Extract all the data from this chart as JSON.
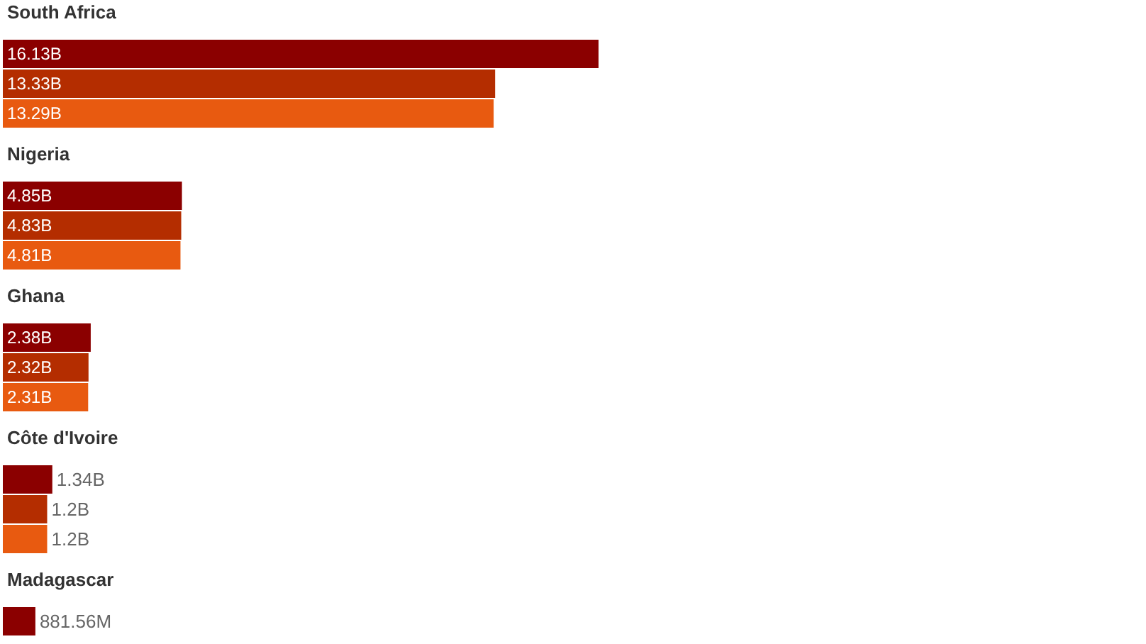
{
  "chart_data": {
    "type": "bar",
    "orientation": "horizontal",
    "tick_labels": false,
    "categories": [
      "South Africa",
      "Nigeria",
      "Ghana",
      "Côte d'Ivoire",
      "Madagascar"
    ],
    "series": [
      {
        "color": "#8b0000",
        "values": [
          16130000000,
          4850000000,
          2380000000,
          1340000000,
          881560000
        ],
        "value_labels": [
          "16.13B",
          "4.85B",
          "2.38B",
          "1.34B",
          "881.56M"
        ]
      },
      {
        "color": "#b42d00",
        "values": [
          13330000000,
          4830000000,
          2320000000,
          1200000000,
          null
        ],
        "value_labels": [
          "13.33B",
          "4.83B",
          "2.32B",
          "1.2B",
          null
        ]
      },
      {
        "color": "#e85a10",
        "values": [
          13290000000,
          4810000000,
          2310000000,
          1200000000,
          null
        ],
        "value_labels": [
          "13.29B",
          "4.81B",
          "2.31B",
          "1.2B",
          null
        ]
      }
    ]
  }
}
